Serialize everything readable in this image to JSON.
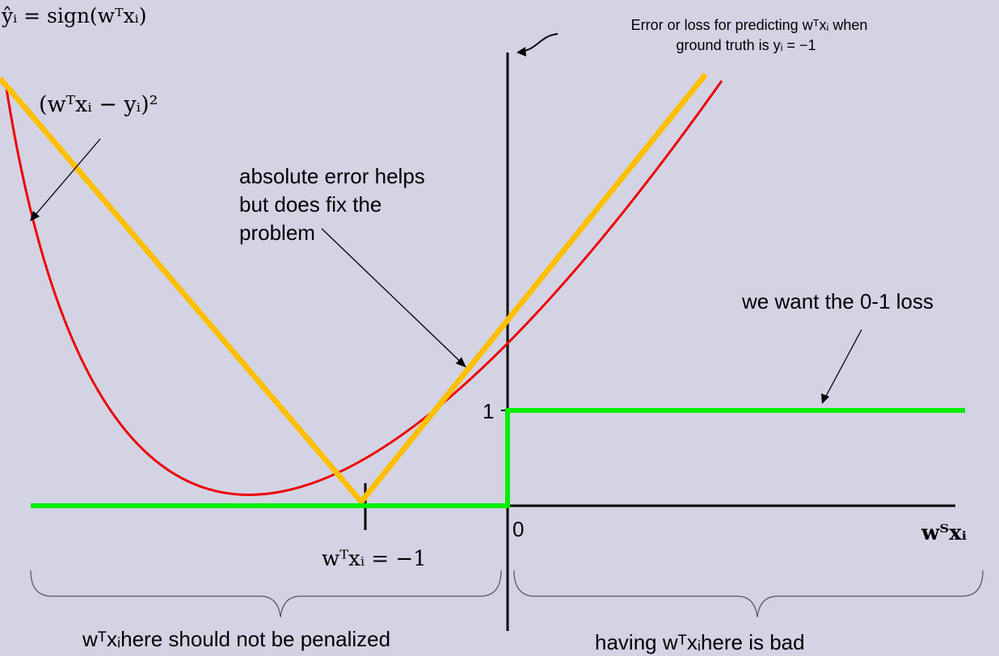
{
  "colors": {
    "background": "#d3d3e4",
    "squared_loss": "#ee0000",
    "absolute_loss": "#ffc000",
    "zero_one_loss": "#00ee00",
    "axis": "#000000"
  },
  "text": {
    "prediction_rule": "ŷᵢ = sign(wᵀxᵢ)",
    "squared_label": "(wᵀxᵢ − yᵢ)²",
    "absolute_note_line1": "absolute error helps",
    "absolute_note_line2": "but does fix the",
    "absolute_note_line3": "problem",
    "loss_caption_line1": "Error or loss for predicting wᵀxᵢ when",
    "loss_caption_line2": "ground truth is yᵢ = −1",
    "zero_one_note": "we want the 0-1 loss",
    "y_tick_one": "1",
    "x_tick_zero": "0",
    "x_axis_label": "wᵀxᵢ",
    "x_tick_minus_one": "wᵀxᵢ  = −1",
    "left_brace_note": "wᵀxᵢhere should not be penalized",
    "right_brace_note": "having wᵀxᵢhere is bad"
  },
  "legend_icons": {
    "squared_pointer": "arrow-icon",
    "absolute_pointer": "arrow-icon",
    "zero_one_pointer": "arrow-icon",
    "caption_pointer": "curved-arrow-icon",
    "left_region": "curly-brace-icon",
    "right_region": "curly-brace-icon"
  }
}
